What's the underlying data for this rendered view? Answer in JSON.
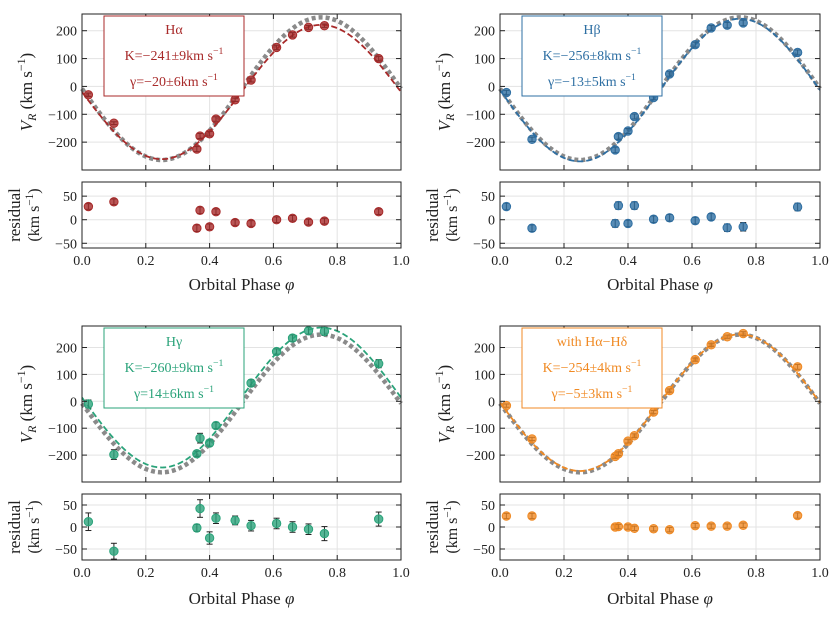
{
  "chart_data": [
    {
      "type": "scatter",
      "title": "",
      "xlabel": "Orbital Phase φ",
      "ylabel": "V_R (km s^-1)",
      "residual_ylabel": [
        "residual",
        "(km s^-1)"
      ],
      "xlim": [
        0,
        1
      ],
      "ylim": [
        -300,
        260
      ],
      "residual_ylim": [
        -60,
        80
      ],
      "x_ticks": [
        "0.0",
        "0.2",
        "0.4",
        "0.6",
        "0.8",
        "1.0"
      ],
      "y_ticks": [
        -200,
        -100,
        0,
        100,
        200
      ],
      "residual_ticks": [
        -50,
        0,
        50
      ],
      "color": "#a82a2a",
      "legend": {
        "line": "Hα",
        "k": "K=−241±9km s^-1",
        "g": "γ=−20±6km s^-1"
      },
      "model": {
        "K": -241,
        "gamma": -20
      },
      "reference_model": {
        "K": -256,
        "gamma": -8
      },
      "points": {
        "x": [
          0.02,
          0.1,
          0.36,
          0.37,
          0.4,
          0.42,
          0.48,
          0.53,
          0.61,
          0.66,
          0.71,
          0.76,
          0.93
        ],
        "y": [
          -30,
          -132,
          -225,
          -178,
          -170,
          -117,
          -48,
          23,
          140,
          185,
          212,
          218,
          100
        ],
        "err": [
          6,
          5,
          9,
          9,
          8,
          8,
          6,
          7,
          8,
          8,
          7,
          6,
          8
        ]
      },
      "residuals": [
        28,
        38,
        -18,
        20,
        -15,
        17,
        -6,
        -8,
        0,
        3,
        -5,
        -3,
        17
      ],
      "residual_err": [
        6,
        6,
        7,
        7,
        6,
        6,
        6,
        6,
        6,
        6,
        6,
        6,
        6
      ]
    },
    {
      "type": "scatter",
      "title": "",
      "xlabel": "Orbital Phase φ",
      "ylabel": "V_R (km s^-1)",
      "residual_ylabel": [
        "residual",
        "(km s^-1)"
      ],
      "xlim": [
        0,
        1
      ],
      "ylim": [
        -300,
        260
      ],
      "residual_ylim": [
        -60,
        80
      ],
      "x_ticks": [
        "0.0",
        "0.2",
        "0.4",
        "0.6",
        "0.8",
        "1.0"
      ],
      "y_ticks": [
        -200,
        -100,
        0,
        100,
        200
      ],
      "residual_ticks": [
        -50,
        0,
        50
      ],
      "color": "#2e6fa3",
      "legend": {
        "line": "Hβ",
        "k": "K=−256±8km s^-1",
        "g": "γ=−13±5km s^-1"
      },
      "model": {
        "K": -256,
        "gamma": -13
      },
      "reference_model": {
        "K": -256,
        "gamma": -8
      },
      "points": {
        "x": [
          0.02,
          0.1,
          0.36,
          0.37,
          0.4,
          0.42,
          0.48,
          0.53,
          0.61,
          0.66,
          0.71,
          0.76,
          0.93
        ],
        "y": [
          -22,
          -190,
          -228,
          -180,
          -160,
          -108,
          -40,
          45,
          150,
          210,
          220,
          228,
          122
        ],
        "err": [
          8,
          8,
          10,
          10,
          9,
          9,
          8,
          8,
          9,
          9,
          10,
          10,
          9
        ]
      },
      "residuals": [
        28,
        -18,
        -8,
        30,
        -8,
        30,
        1,
        4,
        -2,
        6,
        -17,
        -15,
        27
      ],
      "residual_err": [
        7,
        7,
        8,
        8,
        7,
        8,
        7,
        7,
        7,
        7,
        8,
        9,
        8
      ]
    },
    {
      "type": "scatter",
      "title": "",
      "xlabel": "Orbital Phase φ",
      "ylabel": "V_R (km s^-1)",
      "residual_ylabel": [
        "residual",
        "(km s^-1)"
      ],
      "xlim": [
        0,
        1
      ],
      "ylim": [
        -300,
        280
      ],
      "residual_ylim": [
        -75,
        75
      ],
      "x_ticks": [
        "0.0",
        "0.2",
        "0.4",
        "0.6",
        "0.8",
        "1.0"
      ],
      "y_ticks": [
        -200,
        -100,
        0,
        100,
        200
      ],
      "residual_ticks": [
        -50,
        0,
        50
      ],
      "color": "#2aa37a",
      "legend": {
        "line": "Hγ",
        "k": "K=−260±9km s^-1",
        "g": "γ=14±6km s^-1"
      },
      "model": {
        "K": -260,
        "gamma": 14
      },
      "reference_model": {
        "K": -256,
        "gamma": -8
      },
      "points": {
        "x": [
          0.02,
          0.1,
          0.36,
          0.37,
          0.4,
          0.42,
          0.48,
          0.53,
          0.61,
          0.66,
          0.71,
          0.76,
          0.93
        ],
        "y": [
          -10,
          -198,
          -195,
          -137,
          -155,
          -90,
          0,
          68,
          185,
          235,
          262,
          260,
          140
        ],
        "err": [
          15,
          18,
          10,
          18,
          12,
          12,
          10,
          12,
          10,
          12,
          12,
          15,
          15
        ]
      },
      "residuals": [
        12,
        -55,
        -2,
        42,
        -25,
        20,
        15,
        3,
        8,
        0,
        -5,
        -15,
        18
      ],
      "residual_err": [
        20,
        18,
        8,
        20,
        14,
        12,
        10,
        12,
        12,
        12,
        12,
        16,
        16
      ]
    },
    {
      "type": "scatter",
      "title": "",
      "xlabel": "Orbital Phase φ",
      "ylabel": "V_R (km s^-1)",
      "residual_ylabel": [
        "residual",
        "(km s^-1)"
      ],
      "xlim": [
        0,
        1
      ],
      "ylim": [
        -300,
        280
      ],
      "residual_ylim": [
        -75,
        75
      ],
      "x_ticks": [
        "0.0",
        "0.2",
        "0.4",
        "0.6",
        "0.8",
        "1.0"
      ],
      "y_ticks": [
        -200,
        -100,
        0,
        100,
        200
      ],
      "residual_ticks": [
        -50,
        0,
        50
      ],
      "color": "#f08a24",
      "legend": {
        "line": "with Hα−Hδ",
        "k": "K=−254±4km s^-1",
        "g": "γ=−5±3km s^-1"
      },
      "model": {
        "K": -254,
        "gamma": -5
      },
      "reference_model": {
        "K": -256,
        "gamma": -8
      },
      "points": {
        "x": [
          0.02,
          0.1,
          0.36,
          0.37,
          0.4,
          0.42,
          0.48,
          0.53,
          0.61,
          0.66,
          0.71,
          0.76,
          0.93
        ],
        "y": [
          -16,
          -140,
          -205,
          -195,
          -148,
          -128,
          -40,
          40,
          155,
          210,
          240,
          252,
          128
        ],
        "err": [
          6,
          6,
          7,
          7,
          7,
          7,
          6,
          6,
          6,
          6,
          6,
          7,
          9
        ]
      },
      "residuals": [
        25,
        25,
        0,
        1,
        0,
        -3,
        -4,
        -6,
        3,
        2,
        2,
        4,
        26
      ],
      "residual_err": [
        6,
        6,
        5,
        5,
        5,
        5,
        5,
        5,
        5,
        5,
        5,
        5,
        6
      ]
    }
  ]
}
